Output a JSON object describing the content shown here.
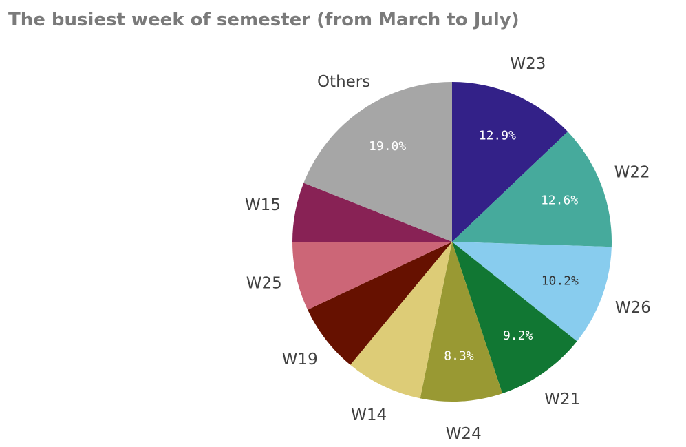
{
  "chart_data": {
    "type": "pie",
    "title": "The busiest week of semester (from March to July)",
    "categories": [
      "W23",
      "W22",
      "W26",
      "W21",
      "W24",
      "W14",
      "W19",
      "W25",
      "W15",
      "Others"
    ],
    "values": [
      12.9,
      12.6,
      10.2,
      9.2,
      8.3,
      7.8,
      7.0,
      7.0,
      6.0,
      19.0
    ],
    "value_labels": [
      "12.9%",
      "12.6%",
      "10.2%",
      "9.2%",
      "8.3%",
      "",
      "",
      "",
      "",
      "19.0%"
    ],
    "colors": [
      "#332188",
      "#46AA9C",
      "#88CCEE",
      "#117733",
      "#999933",
      "#DDCC77",
      "#661100",
      "#CC6677",
      "#882255",
      "#A6A6A6"
    ],
    "value_label_colors": [
      "#ffffff",
      "#ffffff",
      "#333333",
      "#ffffff",
      "#ffffff",
      "",
      "",
      "",
      "",
      "#ffffff"
    ],
    "start": "top",
    "direction": "clockwise",
    "legend": "none"
  }
}
